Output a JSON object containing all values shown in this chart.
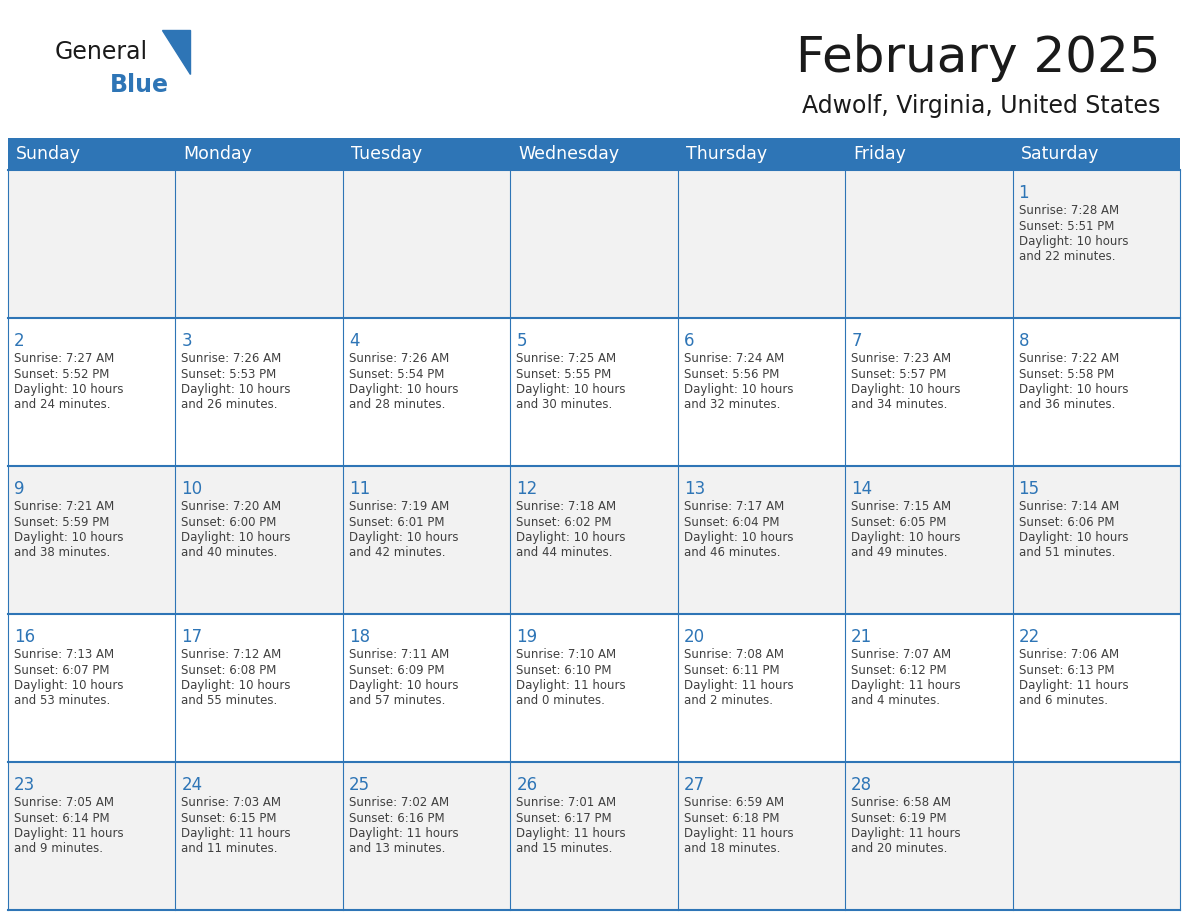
{
  "title": "February 2025",
  "subtitle": "Adwolf, Virginia, United States",
  "header_bg": "#2E75B6",
  "header_text_color": "#FFFFFF",
  "cell_bg_odd": "#F2F2F2",
  "cell_bg_even": "#FFFFFF",
  "day_number_color": "#2E75B6",
  "cell_text_color": "#404040",
  "border_color": "#2E75B6",
  "days_of_week": [
    "Sunday",
    "Monday",
    "Tuesday",
    "Wednesday",
    "Thursday",
    "Friday",
    "Saturday"
  ],
  "calendar_data": [
    [
      null,
      null,
      null,
      null,
      null,
      null,
      {
        "day": 1,
        "sunrise": "7:28 AM",
        "sunset": "5:51 PM",
        "daylight_line1": "10 hours",
        "daylight_line2": "and 22 minutes."
      }
    ],
    [
      {
        "day": 2,
        "sunrise": "7:27 AM",
        "sunset": "5:52 PM",
        "daylight_line1": "10 hours",
        "daylight_line2": "and 24 minutes."
      },
      {
        "day": 3,
        "sunrise": "7:26 AM",
        "sunset": "5:53 PM",
        "daylight_line1": "10 hours",
        "daylight_line2": "and 26 minutes."
      },
      {
        "day": 4,
        "sunrise": "7:26 AM",
        "sunset": "5:54 PM",
        "daylight_line1": "10 hours",
        "daylight_line2": "and 28 minutes."
      },
      {
        "day": 5,
        "sunrise": "7:25 AM",
        "sunset": "5:55 PM",
        "daylight_line1": "10 hours",
        "daylight_line2": "and 30 minutes."
      },
      {
        "day": 6,
        "sunrise": "7:24 AM",
        "sunset": "5:56 PM",
        "daylight_line1": "10 hours",
        "daylight_line2": "and 32 minutes."
      },
      {
        "day": 7,
        "sunrise": "7:23 AM",
        "sunset": "5:57 PM",
        "daylight_line1": "10 hours",
        "daylight_line2": "and 34 minutes."
      },
      {
        "day": 8,
        "sunrise": "7:22 AM",
        "sunset": "5:58 PM",
        "daylight_line1": "10 hours",
        "daylight_line2": "and 36 minutes."
      }
    ],
    [
      {
        "day": 9,
        "sunrise": "7:21 AM",
        "sunset": "5:59 PM",
        "daylight_line1": "10 hours",
        "daylight_line2": "and 38 minutes."
      },
      {
        "day": 10,
        "sunrise": "7:20 AM",
        "sunset": "6:00 PM",
        "daylight_line1": "10 hours",
        "daylight_line2": "and 40 minutes."
      },
      {
        "day": 11,
        "sunrise": "7:19 AM",
        "sunset": "6:01 PM",
        "daylight_line1": "10 hours",
        "daylight_line2": "and 42 minutes."
      },
      {
        "day": 12,
        "sunrise": "7:18 AM",
        "sunset": "6:02 PM",
        "daylight_line1": "10 hours",
        "daylight_line2": "and 44 minutes."
      },
      {
        "day": 13,
        "sunrise": "7:17 AM",
        "sunset": "6:04 PM",
        "daylight_line1": "10 hours",
        "daylight_line2": "and 46 minutes."
      },
      {
        "day": 14,
        "sunrise": "7:15 AM",
        "sunset": "6:05 PM",
        "daylight_line1": "10 hours",
        "daylight_line2": "and 49 minutes."
      },
      {
        "day": 15,
        "sunrise": "7:14 AM",
        "sunset": "6:06 PM",
        "daylight_line1": "10 hours",
        "daylight_line2": "and 51 minutes."
      }
    ],
    [
      {
        "day": 16,
        "sunrise": "7:13 AM",
        "sunset": "6:07 PM",
        "daylight_line1": "10 hours",
        "daylight_line2": "and 53 minutes."
      },
      {
        "day": 17,
        "sunrise": "7:12 AM",
        "sunset": "6:08 PM",
        "daylight_line1": "10 hours",
        "daylight_line2": "and 55 minutes."
      },
      {
        "day": 18,
        "sunrise": "7:11 AM",
        "sunset": "6:09 PM",
        "daylight_line1": "10 hours",
        "daylight_line2": "and 57 minutes."
      },
      {
        "day": 19,
        "sunrise": "7:10 AM",
        "sunset": "6:10 PM",
        "daylight_line1": "11 hours",
        "daylight_line2": "and 0 minutes."
      },
      {
        "day": 20,
        "sunrise": "7:08 AM",
        "sunset": "6:11 PM",
        "daylight_line1": "11 hours",
        "daylight_line2": "and 2 minutes."
      },
      {
        "day": 21,
        "sunrise": "7:07 AM",
        "sunset": "6:12 PM",
        "daylight_line1": "11 hours",
        "daylight_line2": "and 4 minutes."
      },
      {
        "day": 22,
        "sunrise": "7:06 AM",
        "sunset": "6:13 PM",
        "daylight_line1": "11 hours",
        "daylight_line2": "and 6 minutes."
      }
    ],
    [
      {
        "day": 23,
        "sunrise": "7:05 AM",
        "sunset": "6:14 PM",
        "daylight_line1": "11 hours",
        "daylight_line2": "and 9 minutes."
      },
      {
        "day": 24,
        "sunrise": "7:03 AM",
        "sunset": "6:15 PM",
        "daylight_line1": "11 hours",
        "daylight_line2": "and 11 minutes."
      },
      {
        "day": 25,
        "sunrise": "7:02 AM",
        "sunset": "6:16 PM",
        "daylight_line1": "11 hours",
        "daylight_line2": "and 13 minutes."
      },
      {
        "day": 26,
        "sunrise": "7:01 AM",
        "sunset": "6:17 PM",
        "daylight_line1": "11 hours",
        "daylight_line2": "and 15 minutes."
      },
      {
        "day": 27,
        "sunrise": "6:59 AM",
        "sunset": "6:18 PM",
        "daylight_line1": "11 hours",
        "daylight_line2": "and 18 minutes."
      },
      {
        "day": 28,
        "sunrise": "6:58 AM",
        "sunset": "6:19 PM",
        "daylight_line1": "11 hours",
        "daylight_line2": "and 20 minutes."
      },
      null
    ]
  ],
  "logo_general_color": "#1a1a1a",
  "logo_blue_color": "#2E75B6",
  "logo_triangle_color": "#2E75B6",
  "fig_width": 11.88,
  "fig_height": 9.18,
  "dpi": 100
}
